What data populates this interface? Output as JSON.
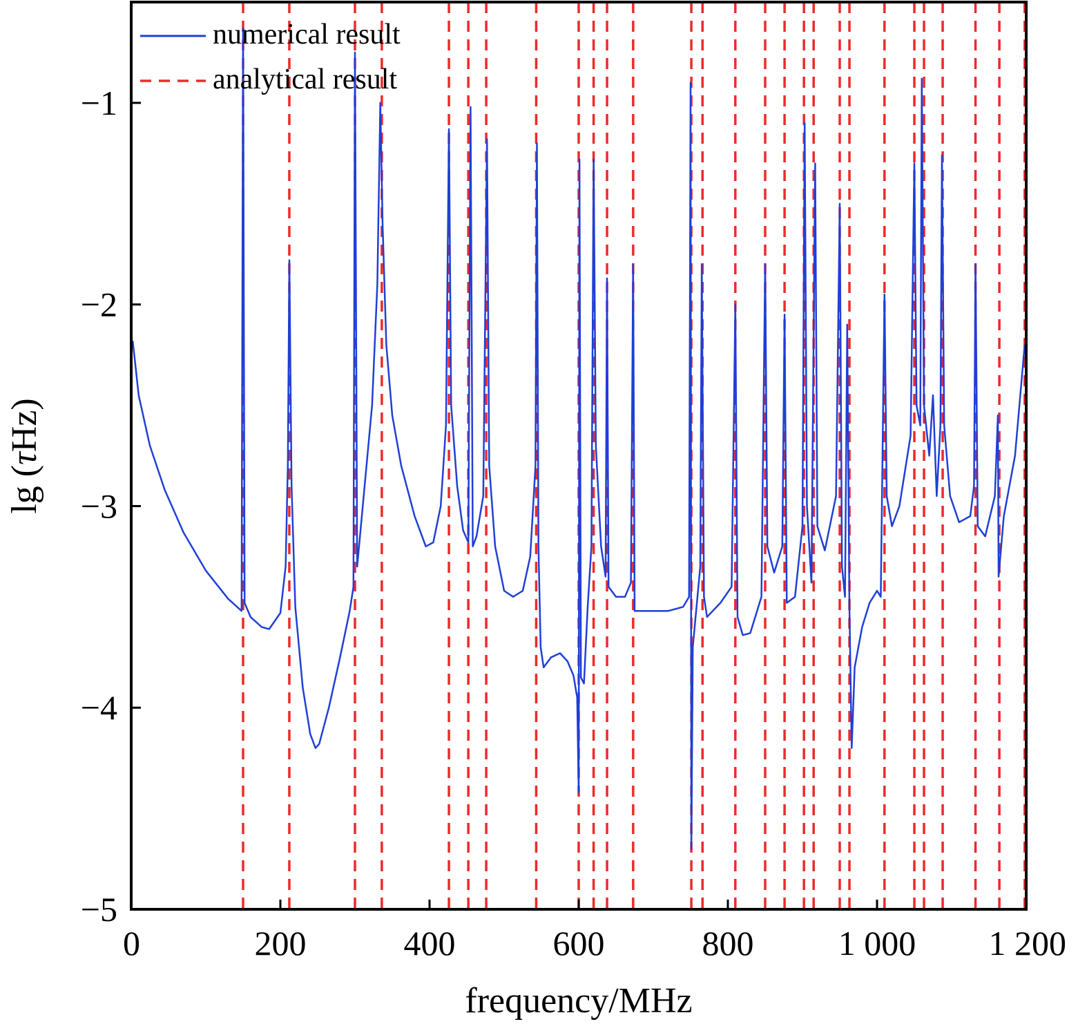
{
  "chart_data": {
    "type": "line",
    "title": "",
    "xlabel": "frequency/MHz",
    "ylabel_prefix": "lg (",
    "ylabel_symbol": "τ",
    "ylabel_suffix": "Hz)",
    "xlim": [
      0,
      1200
    ],
    "ylim": [
      -5,
      -0.5
    ],
    "x_ticks": [
      0,
      200,
      400,
      600,
      800,
      1000,
      1200
    ],
    "x_tick_labels": [
      "0",
      "200",
      "400",
      "600",
      "800",
      "1 000",
      "1 200"
    ],
    "y_ticks": [
      -5,
      -4,
      -3,
      -2,
      -1
    ],
    "y_tick_labels": [
      "−5",
      "−4",
      "−3",
      "−2",
      "−1"
    ],
    "grid": false,
    "legend_position": "top-left",
    "colors": {
      "numerical": "#1f3fd6",
      "analytical": "#ee2a2a",
      "axis": "#000000"
    },
    "series": [
      {
        "name": "numerical result",
        "style": "solid",
        "points": [
          [
            2,
            -2.18
          ],
          [
            10,
            -2.45
          ],
          [
            25,
            -2.7
          ],
          [
            45,
            -2.92
          ],
          [
            70,
            -3.13
          ],
          [
            100,
            -3.32
          ],
          [
            130,
            -3.46
          ],
          [
            148,
            -3.52
          ],
          [
            150,
            -0.63
          ],
          [
            152,
            -3.48
          ],
          [
            160,
            -3.55
          ],
          [
            175,
            -3.6
          ],
          [
            185,
            -3.61
          ],
          [
            200,
            -3.53
          ],
          [
            207,
            -3.3
          ],
          [
            210,
            -2.8
          ],
          [
            212,
            -1.78
          ],
          [
            215,
            -2.9
          ],
          [
            220,
            -3.5
          ],
          [
            230,
            -3.9
          ],
          [
            240,
            -4.13
          ],
          [
            247,
            -4.2
          ],
          [
            252,
            -4.18
          ],
          [
            265,
            -4.0
          ],
          [
            280,
            -3.75
          ],
          [
            293,
            -3.52
          ],
          [
            298,
            -3.4
          ],
          [
            300,
            -0.75
          ],
          [
            303,
            -3.3
          ],
          [
            313,
            -2.9
          ],
          [
            323,
            -2.5
          ],
          [
            330,
            -1.9
          ],
          [
            334,
            -1.0
          ],
          [
            337,
            -1.6
          ],
          [
            342,
            -2.2
          ],
          [
            350,
            -2.55
          ],
          [
            362,
            -2.8
          ],
          [
            380,
            -3.05
          ],
          [
            395,
            -3.2
          ],
          [
            405,
            -3.18
          ],
          [
            415,
            -3.0
          ],
          [
            422,
            -2.6
          ],
          [
            426,
            -1.13
          ],
          [
            429,
            -2.5
          ],
          [
            437,
            -2.9
          ],
          [
            445,
            -3.12
          ],
          [
            452,
            -3.18
          ],
          [
            455,
            -1.02
          ],
          [
            458,
            -3.2
          ],
          [
            463,
            -3.15
          ],
          [
            472,
            -2.95
          ],
          [
            477,
            -1.18
          ],
          [
            480,
            -2.8
          ],
          [
            488,
            -3.2
          ],
          [
            500,
            -3.42
          ],
          [
            512,
            -3.45
          ],
          [
            525,
            -3.42
          ],
          [
            535,
            -3.25
          ],
          [
            542,
            -2.8
          ],
          [
            544,
            -1.2
          ],
          [
            546,
            -3.2
          ],
          [
            549,
            -3.7
          ],
          [
            553,
            -3.8
          ],
          [
            563,
            -3.75
          ],
          [
            575,
            -3.73
          ],
          [
            585,
            -3.77
          ],
          [
            593,
            -3.84
          ],
          [
            598,
            -3.95
          ],
          [
            600,
            -4.42
          ],
          [
            601,
            -1.28
          ],
          [
            603,
            -3.85
          ],
          [
            607,
            -3.88
          ],
          [
            612,
            -3.5
          ],
          [
            617,
            -3.2
          ],
          [
            620,
            -1.28
          ],
          [
            623,
            -2.7
          ],
          [
            630,
            -3.2
          ],
          [
            636,
            -3.35
          ],
          [
            638,
            -1.87
          ],
          [
            640,
            -3.4
          ],
          [
            650,
            -3.45
          ],
          [
            662,
            -3.45
          ],
          [
            670,
            -3.38
          ],
          [
            673,
            -1.8
          ],
          [
            675,
            -3.52
          ],
          [
            690,
            -3.52
          ],
          [
            720,
            -3.52
          ],
          [
            740,
            -3.5
          ],
          [
            748,
            -3.45
          ],
          [
            750,
            -0.9
          ],
          [
            751,
            -4.7
          ],
          [
            753,
            -3.7
          ],
          [
            763,
            -3.3
          ],
          [
            765,
            -1.8
          ],
          [
            768,
            -3.45
          ],
          [
            772,
            -3.55
          ],
          [
            790,
            -3.48
          ],
          [
            805,
            -3.4
          ],
          [
            810,
            -2.0
          ],
          [
            813,
            -3.55
          ],
          [
            820,
            -3.64
          ],
          [
            830,
            -3.63
          ],
          [
            845,
            -3.45
          ],
          [
            850,
            -1.8
          ],
          [
            853,
            -3.2
          ],
          [
            862,
            -3.33
          ],
          [
            873,
            -3.2
          ],
          [
            876,
            -2.05
          ],
          [
            879,
            -3.48
          ],
          [
            890,
            -3.45
          ],
          [
            900,
            -3.1
          ],
          [
            903,
            -1.1
          ],
          [
            906,
            -3.0
          ],
          [
            912,
            -3.38
          ],
          [
            917,
            -1.3
          ],
          [
            920,
            -3.1
          ],
          [
            930,
            -3.22
          ],
          [
            945,
            -2.95
          ],
          [
            950,
            -1.5
          ],
          [
            953,
            -3.3
          ],
          [
            957,
            -3.45
          ],
          [
            960,
            -2.1
          ],
          [
            963,
            -3.5
          ],
          [
            966,
            -4.2
          ],
          [
            970,
            -3.8
          ],
          [
            980,
            -3.6
          ],
          [
            990,
            -3.48
          ],
          [
            1000,
            -3.42
          ],
          [
            1005,
            -3.45
          ],
          [
            1010,
            -1.95
          ],
          [
            1013,
            -2.95
          ],
          [
            1020,
            -3.1
          ],
          [
            1030,
            -3.0
          ],
          [
            1045,
            -2.65
          ],
          [
            1050,
            -1.3
          ],
          [
            1053,
            -2.5
          ],
          [
            1058,
            -2.6
          ],
          [
            1060,
            -0.88
          ],
          [
            1063,
            -2.5
          ],
          [
            1070,
            -2.75
          ],
          [
            1075,
            -2.45
          ],
          [
            1080,
            -2.95
          ],
          [
            1085,
            -2.6
          ],
          [
            1087,
            -1.26
          ],
          [
            1090,
            -2.6
          ],
          [
            1098,
            -2.95
          ],
          [
            1110,
            -3.08
          ],
          [
            1125,
            -3.05
          ],
          [
            1130,
            -2.9
          ],
          [
            1132,
            -1.8
          ],
          [
            1135,
            -3.1
          ],
          [
            1145,
            -3.15
          ],
          [
            1158,
            -2.95
          ],
          [
            1162,
            -2.55
          ],
          [
            1163,
            -3.35
          ],
          [
            1170,
            -3.05
          ],
          [
            1185,
            -2.75
          ],
          [
            1198,
            -2.2
          ]
        ]
      },
      {
        "name": "analytical result",
        "style": "dashed",
        "x": [
          150,
          212,
          300,
          336,
          426,
          452,
          476,
          543,
          600,
          620,
          638,
          673,
          751,
          766,
          810,
          850,
          876,
          902,
          915,
          950,
          963,
          1010,
          1050,
          1063,
          1088,
          1132,
          1164,
          1198
        ]
      }
    ]
  }
}
